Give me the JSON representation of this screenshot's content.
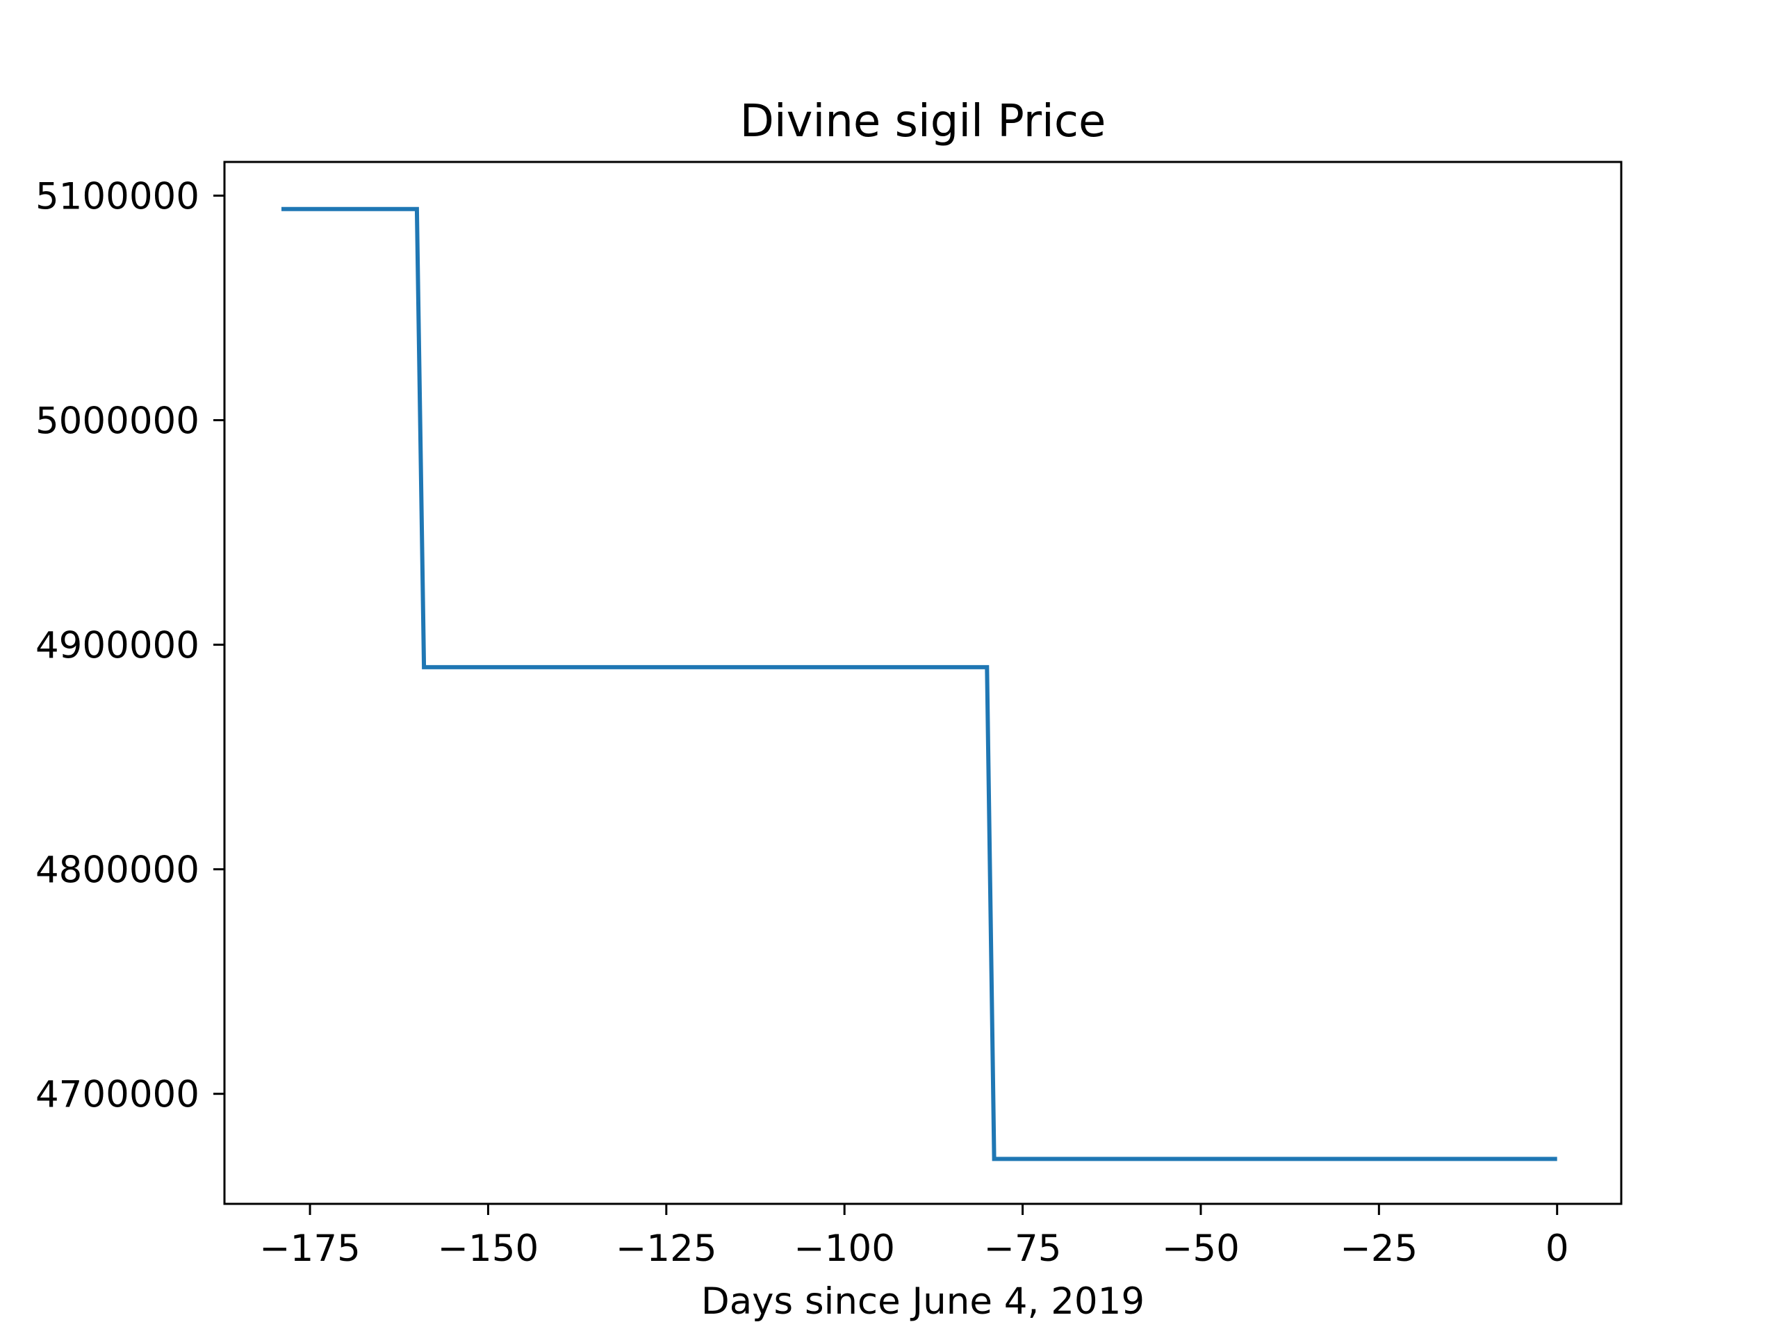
{
  "chart_data": {
    "type": "line",
    "title": "Divine sigil Price",
    "xlabel": "Days since June 4, 2019",
    "ylabel": "",
    "x_ticks": [
      -175,
      -150,
      -125,
      -100,
      -75,
      -50,
      -25,
      0
    ],
    "x_tick_labels": [
      "−175",
      "−150",
      "−125",
      "−100",
      "−75",
      "−50",
      "−25",
      "0"
    ],
    "y_ticks": [
      4700000,
      4800000,
      4900000,
      5000000,
      5100000
    ],
    "y_tick_labels": [
      "4700000",
      "4800000",
      "4900000",
      "5000000",
      "5100000"
    ],
    "xlim": [
      -187,
      9
    ],
    "ylim": [
      4651000,
      5115000
    ],
    "grid": false,
    "legend": "none",
    "series": [
      {
        "color": "#1f77b4",
        "x": [
          -179,
          -160,
          -159,
          -80,
          -79,
          0
        ],
        "y": [
          5094000,
          5094000,
          4890000,
          4890000,
          4671000,
          4671000
        ]
      }
    ]
  }
}
